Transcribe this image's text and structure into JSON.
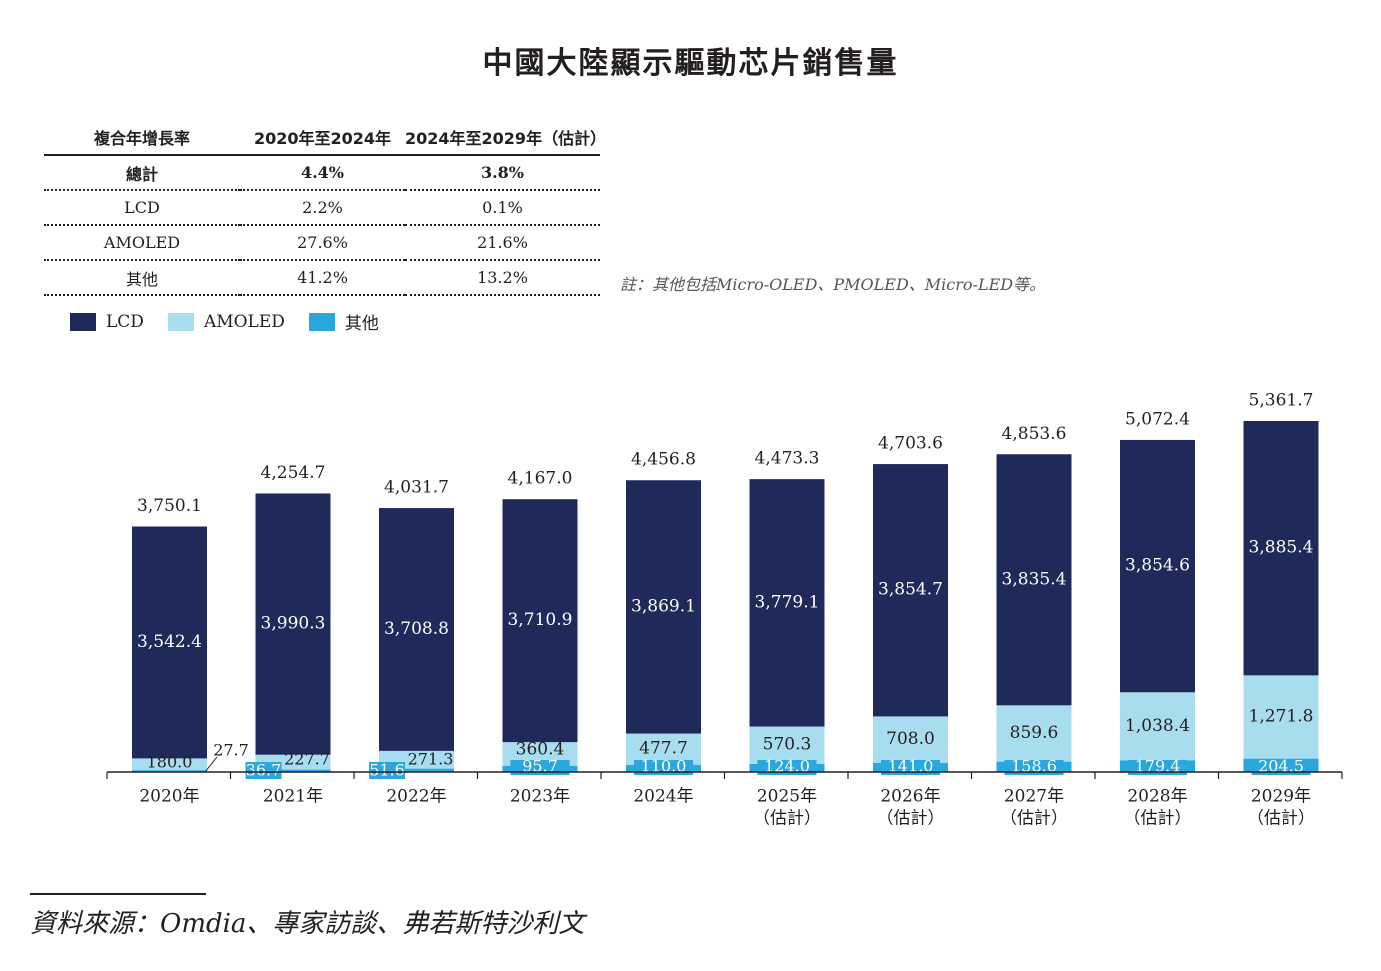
{
  "title": "中國大陸顯示驅動芯片銷售量",
  "cagr_table": {
    "headers": [
      "複合年增長率",
      "2020年至2024年",
      "2024年至2029年（估計）"
    ],
    "rows": [
      [
        "總計",
        "4.4%",
        "3.8%"
      ],
      [
        "LCD",
        "2.2%",
        "0.1%"
      ],
      [
        "AMOLED",
        "27.6%",
        "21.6%"
      ],
      [
        "其他",
        "41.2%",
        "13.2%"
      ]
    ]
  },
  "note": "註：其他包括Micro-OLED、PMOLED、Micro-LED等。",
  "source": "資料來源：Omdia、專家訪談、弗若斯特沙利文",
  "colors": {
    "lcd": "#1f2a5a",
    "amoled": "#a8ddef",
    "other": "#2aa7dd",
    "text": "#231f20"
  },
  "chart_data": {
    "type": "bar",
    "stacked": true,
    "categories": [
      "2020年",
      "2021年",
      "2022年",
      "2023年",
      "2024年",
      "2025年",
      "2026年",
      "2027年",
      "2028年",
      "2029年"
    ],
    "category_sublabels": [
      "",
      "",
      "",
      "",
      "",
      "（估計）",
      "（估計）",
      "（估計）",
      "（估計）",
      "（估計）"
    ],
    "series": [
      {
        "name": "其他",
        "values": [
          27.7,
          36.7,
          51.6,
          95.7,
          110.0,
          124.0,
          141.0,
          158.6,
          179.4,
          204.5
        ],
        "labels": [
          "27.7",
          "36.7",
          "51.6",
          "95.7",
          "110.0",
          "124.0",
          "141.0",
          "158.6",
          "179.4",
          "204.5"
        ]
      },
      {
        "name": "AMOLED",
        "values": [
          180.0,
          227.7,
          271.3,
          360.4,
          477.7,
          570.3,
          708.0,
          859.6,
          1038.4,
          1271.8
        ],
        "labels": [
          "180.0",
          "227.7",
          "271.3",
          "360.4",
          "477.7",
          "570.3",
          "708.0",
          "859.6",
          "1,038.4",
          "1,271.8"
        ]
      },
      {
        "name": "LCD",
        "values": [
          3542.4,
          3990.3,
          3708.8,
          3710.9,
          3869.1,
          3779.1,
          3854.7,
          3835.4,
          3854.6,
          3885.4
        ],
        "labels": [
          "3,542.4",
          "3,990.3",
          "3,708.8",
          "3,710.9",
          "3,869.1",
          "3,779.1",
          "3,854.7",
          "3,835.4",
          "3,854.6",
          "3,885.4"
        ]
      }
    ],
    "totals": [
      3750.1,
      4254.7,
      4031.7,
      4167.0,
      4456.8,
      4473.3,
      4703.6,
      4853.6,
      5072.4,
      5361.7
    ],
    "total_labels": [
      "3,750.1",
      "4,254.7",
      "4,031.7",
      "4,167.0",
      "4,456.8",
      "4,473.3",
      "4,703.6",
      "4,853.6",
      "5,072.4",
      "5,361.7"
    ],
    "legend": [
      "LCD",
      "AMOLED",
      "其他"
    ],
    "ylim": [
      0,
      5361.7
    ],
    "grid": false
  }
}
